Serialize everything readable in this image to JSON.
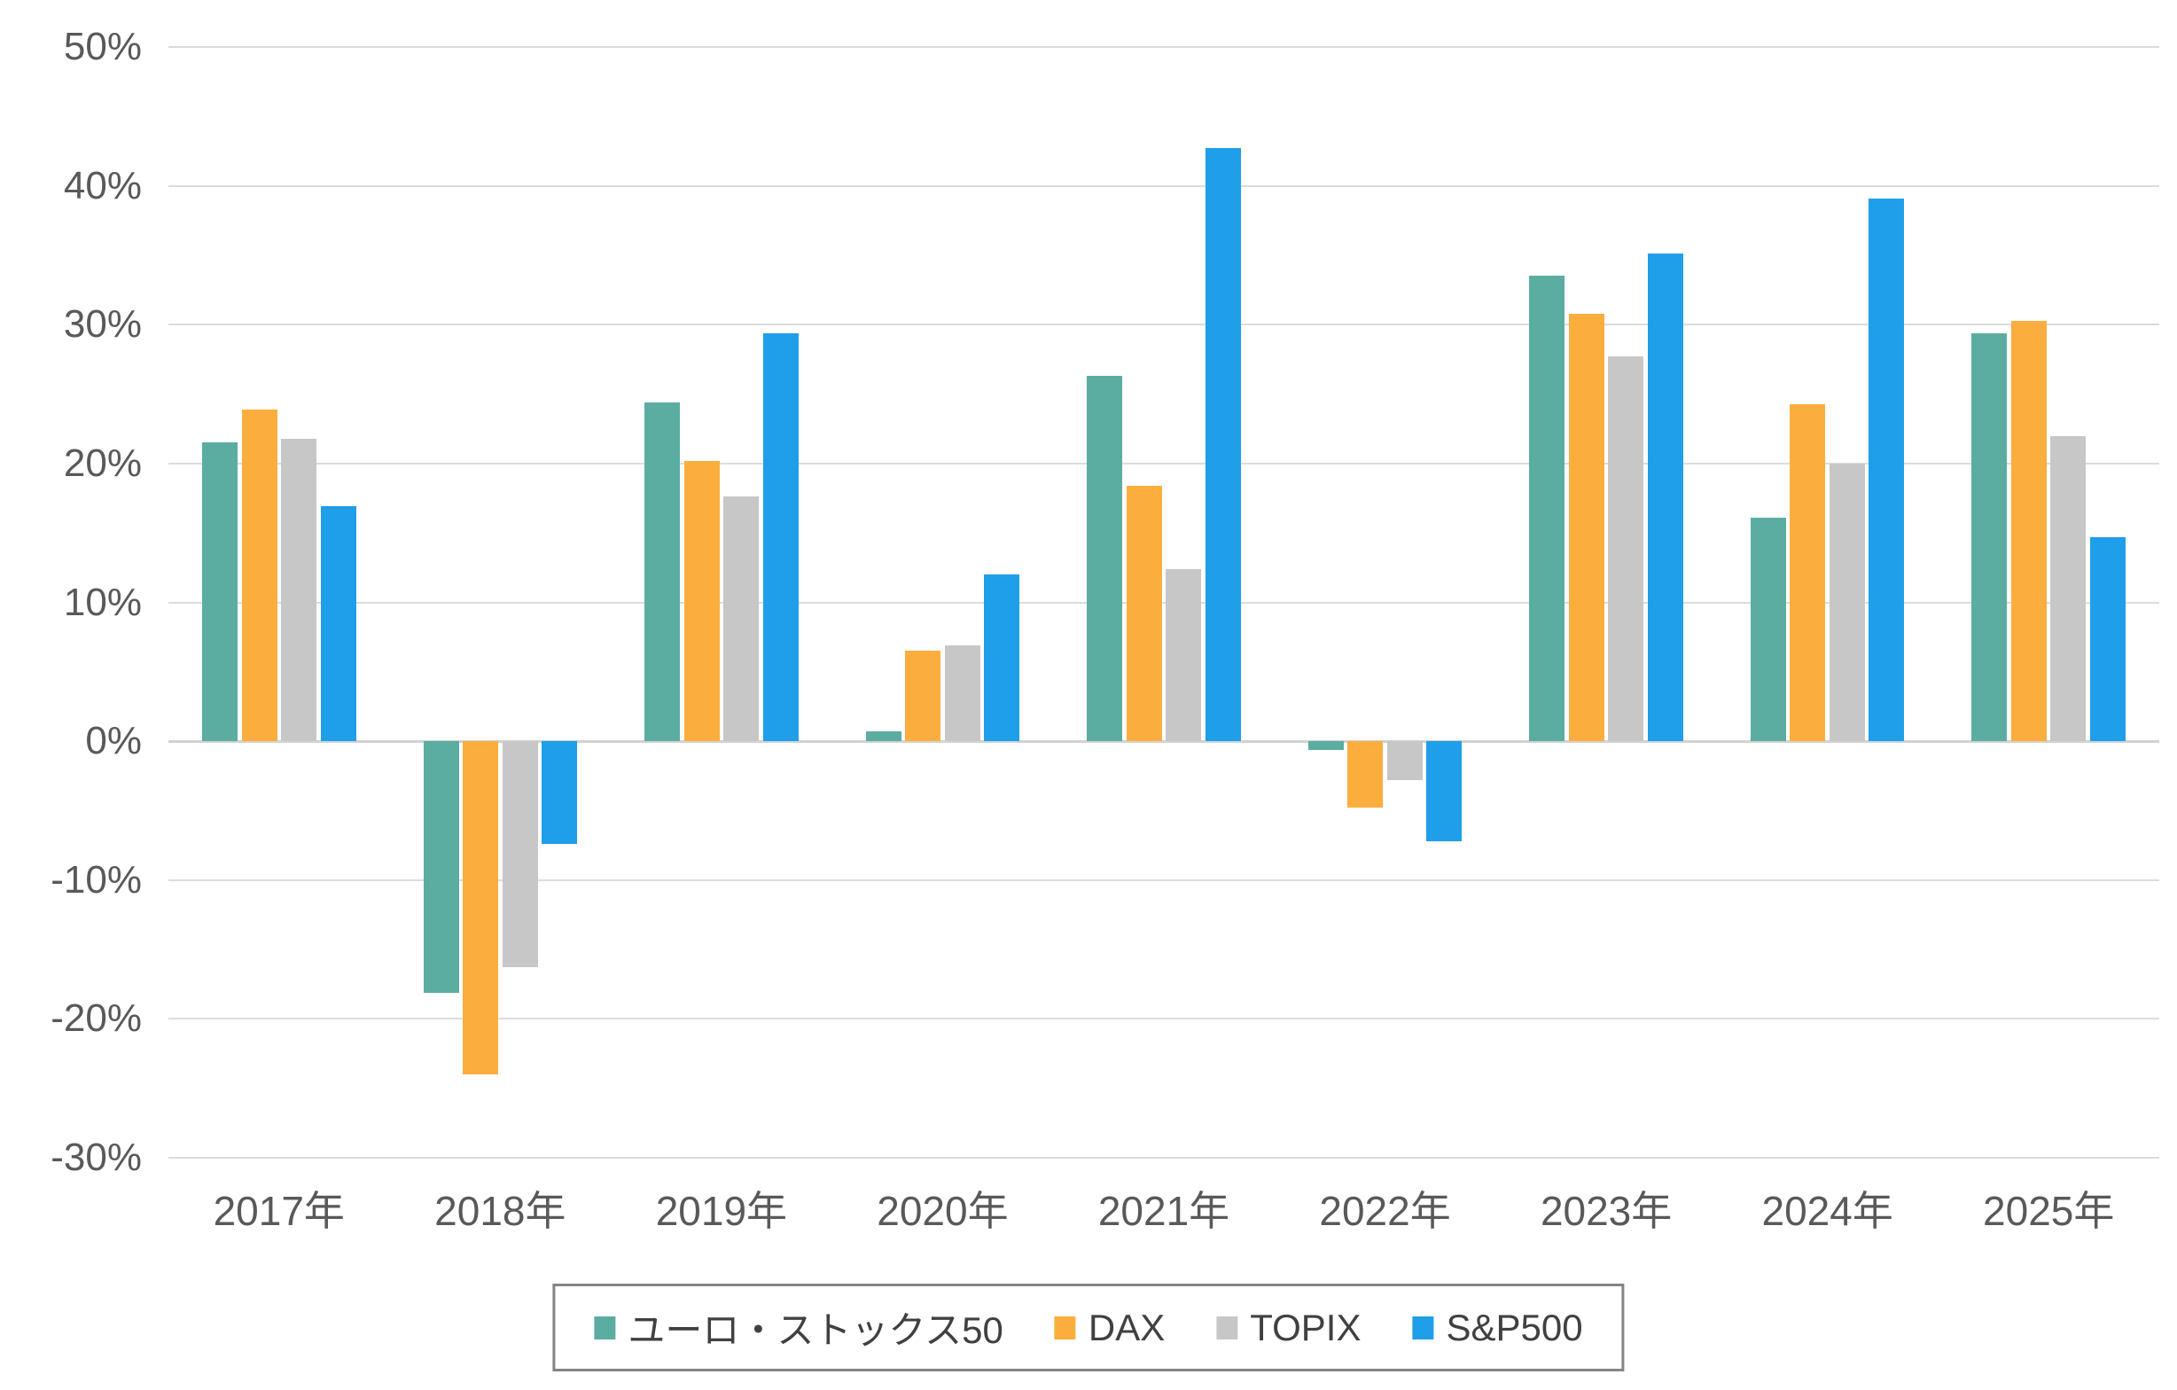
{
  "chart_data": {
    "type": "bar",
    "title": "",
    "categories": [
      "2017年",
      "2018年",
      "2019年",
      "2020年",
      "2021年",
      "2022年",
      "2023年",
      "2024年",
      "2025年"
    ],
    "series": [
      {
        "name": "ユーロ・ストックス50",
        "color": "#5BADA2",
        "values": [
          21.5,
          -18.1,
          24.4,
          0.7,
          26.3,
          -0.6,
          33.5,
          16.1,
          29.4
        ]
      },
      {
        "name": "DAX",
        "color": "#FBAE3D",
        "values": [
          23.9,
          -24.0,
          20.2,
          6.5,
          18.4,
          -4.8,
          30.8,
          24.3,
          30.3
        ]
      },
      {
        "name": "TOPIX",
        "color": "#C7C7C7",
        "values": [
          21.8,
          -16.3,
          17.6,
          6.9,
          12.4,
          -2.8,
          27.7,
          20.0,
          22.0
        ]
      },
      {
        "name": "S&P500",
        "color": "#1F9EE9",
        "values": [
          16.9,
          -7.4,
          29.4,
          12.0,
          42.7,
          -7.2,
          35.1,
          39.1,
          14.7
        ]
      }
    ],
    "y_axis": {
      "min": -30,
      "max": 50,
      "step": 10,
      "tick_labels": [
        "50%",
        "40%",
        "30%",
        "20%",
        "10%",
        "0%",
        "-10%",
        "-20%",
        "-30%"
      ],
      "unit": "%"
    },
    "grid": true,
    "legend_position": "bottom",
    "background_color": "#FFFFFF",
    "gridline_color": "#DCDCDC",
    "tick_label_color": "#595959"
  }
}
